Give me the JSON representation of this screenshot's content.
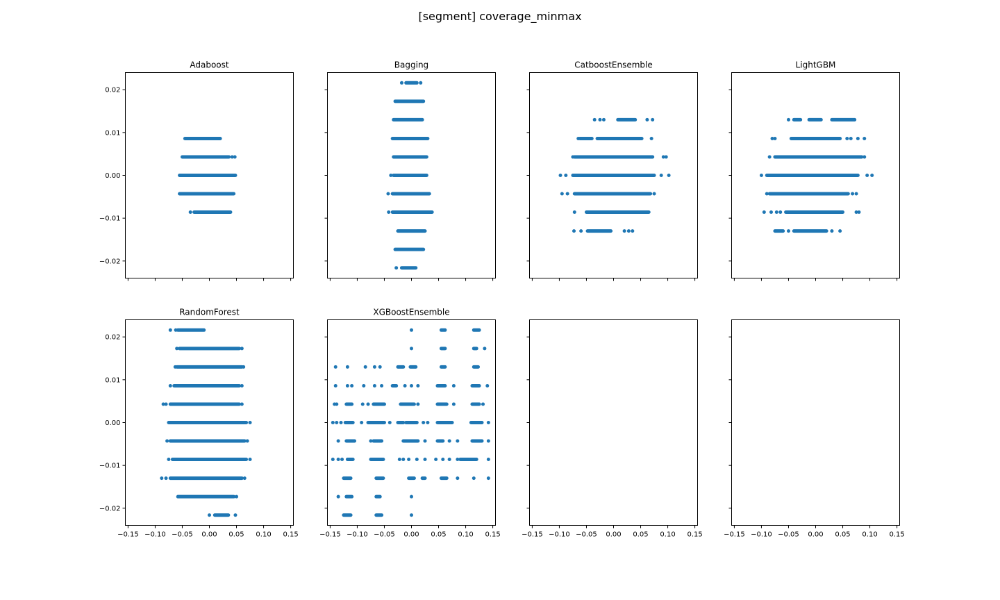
{
  "figure": {
    "suptitle": "[segment] coverage_minmax",
    "marker_color": "#1f77b4"
  },
  "chart_data": [
    {
      "type": "scatter",
      "title": "Adaboost",
      "xlim": [
        -0.155,
        0.155
      ],
      "ylim": [
        -0.024,
        0.024
      ],
      "x_ticks": [
        -0.15,
        -0.1,
        -0.05,
        0.0,
        0.05,
        0.1,
        0.15
      ],
      "x_tick_labels": [],
      "y_ticks": [
        0.02,
        0.01,
        0.0,
        -0.01,
        -0.02
      ],
      "y_tick_labels": [
        "0.02",
        "0.01",
        "0.00",
        "−0.01",
        "−0.02"
      ],
      "rows": [
        {
          "y": 0.0086,
          "ranges": [
            [
              -0.045,
              0.02
            ]
          ],
          "points": []
        },
        {
          "y": 0.0043,
          "ranges": [
            [
              -0.05,
              0.036
            ]
          ],
          "points": [
            0.042,
            0.047
          ]
        },
        {
          "y": 0.0,
          "ranges": [
            [
              -0.055,
              0.048
            ]
          ],
          "points": []
        },
        {
          "y": -0.0043,
          "ranges": [
            [
              -0.055,
              0.045
            ]
          ],
          "points": []
        },
        {
          "y": -0.0086,
          "ranges": [
            [
              -0.028,
              0.039
            ]
          ],
          "points": [
            -0.035
          ]
        }
      ]
    },
    {
      "type": "scatter",
      "title": "Bagging",
      "xlim": [
        -0.155,
        0.155
      ],
      "ylim": [
        -0.024,
        0.024
      ],
      "x_ticks": [
        -0.15,
        -0.1,
        -0.05,
        0.0,
        0.05,
        0.1,
        0.15
      ],
      "x_tick_labels": [],
      "y_ticks": [
        0.02,
        0.01,
        0.0,
        -0.01,
        -0.02
      ],
      "y_tick_labels": [],
      "rows": [
        {
          "y": 0.0216,
          "ranges": [
            [
              -0.01,
              0.01
            ]
          ],
          "points": [
            -0.018,
            0.017
          ]
        },
        {
          "y": 0.0173,
          "ranges": [
            [
              -0.03,
              0.022
            ]
          ],
          "points": []
        },
        {
          "y": 0.013,
          "ranges": [
            [
              -0.033,
              0.02
            ]
          ],
          "points": []
        },
        {
          "y": 0.0086,
          "ranges": [
            [
              -0.035,
              0.03
            ]
          ],
          "points": []
        },
        {
          "y": 0.0043,
          "ranges": [
            [
              -0.033,
              0.028
            ]
          ],
          "points": []
        },
        {
          "y": 0.0,
          "ranges": [
            [
              -0.033,
              0.028
            ]
          ],
          "points": [
            -0.038
          ]
        },
        {
          "y": -0.0043,
          "ranges": [
            [
              -0.035,
              0.033
            ]
          ],
          "points": [
            -0.043
          ]
        },
        {
          "y": -0.0086,
          "ranges": [
            [
              -0.035,
              0.038
            ]
          ],
          "points": [
            -0.042
          ]
        },
        {
          "y": -0.013,
          "ranges": [
            [
              -0.025,
              0.025
            ]
          ],
          "points": []
        },
        {
          "y": -0.0173,
          "ranges": [
            [
              -0.03,
              0.022
            ]
          ],
          "points": []
        },
        {
          "y": -0.0216,
          "ranges": [
            [
              -0.018,
              0.008
            ]
          ],
          "points": [
            -0.028
          ]
        }
      ]
    },
    {
      "type": "scatter",
      "title": "CatboostEnsemble",
      "xlim": [
        -0.155,
        0.155
      ],
      "ylim": [
        -0.024,
        0.024
      ],
      "x_ticks": [
        -0.15,
        -0.1,
        -0.05,
        0.0,
        0.05,
        0.1,
        0.15
      ],
      "x_tick_labels": [],
      "y_ticks": [
        0.02,
        0.01,
        0.0,
        -0.01,
        -0.02
      ],
      "y_tick_labels": [],
      "rows": [
        {
          "y": 0.013,
          "ranges": [
            [
              0.008,
              0.04
            ]
          ],
          "points": [
            -0.035,
            -0.025,
            -0.018,
            0.062,
            0.072
          ]
        },
        {
          "y": 0.0086,
          "ranges": [
            [
              -0.062,
              -0.04
            ],
            [
              -0.03,
              0.052
            ]
          ],
          "points": [
            -0.065,
            0.07
          ]
        },
        {
          "y": 0.0043,
          "ranges": [
            [
              -0.072,
              0.072
            ]
          ],
          "points": [
            -0.075,
            0.092,
            0.097
          ]
        },
        {
          "y": 0.0,
          "ranges": [
            [
              -0.075,
              0.075
            ]
          ],
          "points": [
            -0.098,
            -0.088,
            0.088,
            0.102
          ]
        },
        {
          "y": -0.0043,
          "ranges": [
            [
              -0.072,
              0.068
            ]
          ],
          "points": [
            -0.095,
            -0.085,
            0.075
          ]
        },
        {
          "y": -0.0086,
          "ranges": [
            [
              -0.05,
              0.065
            ]
          ],
          "points": [
            -0.072
          ]
        },
        {
          "y": -0.013,
          "ranges": [
            [
              -0.048,
              -0.005
            ]
          ],
          "points": [
            -0.073,
            -0.06,
            0.02,
            0.028,
            0.035
          ]
        }
      ]
    },
    {
      "type": "scatter",
      "title": "LightGBM",
      "xlim": [
        -0.155,
        0.155
      ],
      "ylim": [
        -0.024,
        0.024
      ],
      "x_ticks": [
        -0.15,
        -0.1,
        -0.05,
        0.0,
        0.05,
        0.1,
        0.15
      ],
      "x_tick_labels": [],
      "y_ticks": [
        0.02,
        0.01,
        0.0,
        -0.01,
        -0.02
      ],
      "y_tick_labels": [],
      "rows": [
        {
          "y": 0.013,
          "ranges": [
            [
              -0.04,
              -0.028
            ],
            [
              -0.012,
              0.01
            ],
            [
              0.03,
              0.072
            ]
          ],
          "points": [
            -0.05
          ]
        },
        {
          "y": 0.0086,
          "ranges": [
            [
              -0.045,
              0.045
            ]
          ],
          "points": [
            -0.08,
            -0.075,
            0.058,
            0.065,
            0.078,
            0.09
          ]
        },
        {
          "y": 0.0043,
          "ranges": [
            [
              -0.075,
              0.085
            ]
          ],
          "points": [
            -0.085,
            0.09
          ]
        },
        {
          "y": 0.0,
          "ranges": [
            [
              -0.09,
              0.078
            ]
          ],
          "points": [
            -0.1,
            0.095,
            0.104
          ]
        },
        {
          "y": -0.0043,
          "ranges": [
            [
              -0.085,
              0.06
            ]
          ],
          "points": [
            -0.09,
            0.068,
            0.075
          ]
        },
        {
          "y": -0.0086,
          "ranges": [
            [
              -0.055,
              0.05
            ]
          ],
          "points": [
            -0.095,
            -0.082,
            -0.072,
            -0.065,
            0.075,
            0.08
          ]
        },
        {
          "y": -0.013,
          "ranges": [
            [
              -0.075,
              -0.06
            ],
            [
              -0.04,
              0.02
            ]
          ],
          "points": [
            -0.05,
            0.03,
            0.045
          ]
        }
      ]
    },
    {
      "type": "scatter",
      "title": "RandomForest",
      "xlim": [
        -0.155,
        0.155
      ],
      "ylim": [
        -0.024,
        0.024
      ],
      "x_ticks": [
        -0.15,
        -0.1,
        -0.05,
        0.0,
        0.05,
        0.1,
        0.15
      ],
      "x_tick_labels": [
        "−0.15",
        "−0.10",
        "−0.05",
        "0.00",
        "0.05",
        "0.10",
        "0.15"
      ],
      "y_ticks": [
        0.02,
        0.01,
        0.0,
        -0.01,
        -0.02
      ],
      "y_tick_labels": [
        "0.02",
        "0.01",
        "0.00",
        "−0.01",
        "−0.02"
      ],
      "rows": [
        {
          "y": 0.0216,
          "ranges": [
            [
              -0.058,
              -0.01
            ]
          ],
          "points": [
            -0.072,
            -0.062
          ]
        },
        {
          "y": 0.0173,
          "ranges": [
            [
              -0.055,
              0.055
            ]
          ],
          "points": [
            -0.06,
            0.06
          ]
        },
        {
          "y": 0.013,
          "ranges": [
            [
              -0.06,
              0.06
            ]
          ],
          "points": [
            -0.063,
            0.063
          ]
        },
        {
          "y": 0.0086,
          "ranges": [
            [
              -0.065,
              0.055
            ]
          ],
          "points": [
            -0.072,
            0.06
          ]
        },
        {
          "y": 0.0043,
          "ranges": [
            [
              -0.072,
              0.055
            ]
          ],
          "points": [
            -0.085,
            -0.08,
            0.06
          ]
        },
        {
          "y": 0.0,
          "ranges": [
            [
              -0.075,
              0.068
            ]
          ],
          "points": [
            0.075
          ]
        },
        {
          "y": -0.0043,
          "ranges": [
            [
              -0.072,
              0.065
            ]
          ],
          "points": [
            -0.078,
            0.07
          ]
        },
        {
          "y": -0.0086,
          "ranges": [
            [
              -0.068,
              0.068
            ]
          ],
          "points": [
            -0.075,
            0.075
          ]
        },
        {
          "y": -0.013,
          "ranges": [
            [
              -0.072,
              0.06
            ]
          ],
          "points": [
            -0.088,
            -0.08,
            0.065
          ]
        },
        {
          "y": -0.0173,
          "ranges": [
            [
              -0.058,
              0.045
            ]
          ],
          "points": [
            0.05
          ]
        },
        {
          "y": -0.0216,
          "ranges": [
            [
              0.01,
              0.035
            ]
          ],
          "points": [
            0.0,
            0.048
          ]
        }
      ]
    },
    {
      "type": "scatter",
      "title": "XGBoostEnsemble",
      "xlim": [
        -0.155,
        0.155
      ],
      "ylim": [
        -0.024,
        0.024
      ],
      "x_ticks": [
        -0.15,
        -0.1,
        -0.05,
        0.0,
        0.05,
        0.1,
        0.15
      ],
      "x_tick_labels": [
        "−0.15",
        "−0.10",
        "−0.05",
        "0.00",
        "0.05",
        "0.10",
        "0.15"
      ],
      "y_ticks": [
        0.02,
        0.01,
        0.0,
        -0.01,
        -0.02
      ],
      "y_tick_labels": [],
      "rows": [
        {
          "y": 0.0216,
          "ranges": [
            [
              0.055,
              0.062
            ],
            [
              0.115,
              0.125
            ]
          ],
          "points": [
            0.0
          ]
        },
        {
          "y": 0.0173,
          "ranges": [
            [
              0.055,
              0.062
            ],
            [
              0.115,
              0.12
            ]
          ],
          "points": [
            0.0,
            0.135
          ]
        },
        {
          "y": 0.013,
          "ranges": [
            [
              -0.025,
              -0.015
            ],
            [
              -0.002,
              0.008
            ],
            [
              0.055,
              0.062
            ],
            [
              0.115,
              0.123
            ]
          ],
          "points": [
            -0.14,
            -0.118,
            -0.085,
            -0.068,
            -0.058
          ]
        },
        {
          "y": 0.0086,
          "ranges": [
            [
              -0.035,
              -0.028
            ],
            [
              0.048,
              0.062
            ],
            [
              0.112,
              0.125
            ]
          ],
          "points": [
            -0.14,
            -0.118,
            -0.11,
            -0.088,
            -0.068,
            -0.055,
            -0.012,
            0.0,
            0.012,
            0.078,
            0.14
          ]
        },
        {
          "y": 0.0043,
          "ranges": [
            [
              -0.12,
              -0.11
            ],
            [
              -0.07,
              -0.05
            ],
            [
              -0.02,
              0.005
            ],
            [
              0.048,
              0.065
            ],
            [
              0.112,
              0.125
            ]
          ],
          "points": [
            -0.142,
            -0.138,
            -0.09,
            -0.08,
            0.012,
            0.078,
            0.132
          ]
        },
        {
          "y": 0.0,
          "ranges": [
            [
              -0.122,
              -0.108
            ],
            [
              -0.08,
              -0.05
            ],
            [
              -0.025,
              -0.015
            ],
            [
              -0.01,
              0.01
            ],
            [
              0.048,
              0.075
            ],
            [
              0.11,
              0.13
            ]
          ],
          "points": [
            -0.145,
            -0.138,
            -0.13,
            -0.092,
            -0.04,
            0.022,
            0.03,
            0.142
          ]
        },
        {
          "y": -0.0043,
          "ranges": [
            [
              -0.12,
              -0.105
            ],
            [
              -0.07,
              -0.055
            ],
            [
              -0.015,
              0.012
            ],
            [
              0.048,
              0.058
            ],
            [
              0.112,
              0.13
            ]
          ],
          "points": [
            -0.135,
            -0.075,
            0.025,
            0.07,
            0.085,
            0.142
          ]
        },
        {
          "y": -0.0086,
          "ranges": [
            [
              -0.118,
              -0.108
            ],
            [
              -0.075,
              -0.052
            ],
            [
              0.09,
              0.12
            ]
          ],
          "points": [
            -0.145,
            -0.135,
            -0.128,
            -0.022,
            -0.015,
            -0.005,
            0.01,
            0.025,
            0.045,
            0.058,
            0.07,
            0.085,
            0.142
          ]
        },
        {
          "y": -0.013,
          "ranges": [
            [
              -0.125,
              -0.112
            ],
            [
              -0.065,
              -0.052
            ],
            [
              -0.005,
              0.005
            ],
            [
              0.02,
              0.025
            ],
            [
              0.055,
              0.065
            ]
          ],
          "points": [
            0.085,
            0.115,
            0.142
          ]
        },
        {
          "y": -0.0173,
          "ranges": [
            [
              -0.065,
              -0.058
            ],
            [
              -0.12,
              -0.11
            ]
          ],
          "points": [
            -0.135,
            0.0
          ]
        },
        {
          "y": -0.0216,
          "ranges": [
            [
              -0.125,
              -0.112
            ],
            [
              -0.065,
              -0.055
            ]
          ],
          "points": [
            0.0
          ]
        }
      ]
    },
    {
      "type": "scatter",
      "title": "",
      "xlim": [
        -0.155,
        0.155
      ],
      "ylim": [
        -0.024,
        0.024
      ],
      "x_ticks": [
        -0.15,
        -0.1,
        -0.05,
        0.0,
        0.05,
        0.1,
        0.15
      ],
      "x_tick_labels": [
        "−0.15",
        "−0.10",
        "−0.05",
        "0.00",
        "0.05",
        "0.10",
        "0.15"
      ],
      "y_ticks": [
        0.02,
        0.01,
        0.0,
        -0.01,
        -0.02
      ],
      "y_tick_labels": [],
      "rows": []
    },
    {
      "type": "scatter",
      "title": "",
      "xlim": [
        -0.155,
        0.155
      ],
      "ylim": [
        -0.024,
        0.024
      ],
      "x_ticks": [
        -0.15,
        -0.1,
        -0.05,
        0.0,
        0.05,
        0.1,
        0.15
      ],
      "x_tick_labels": [
        "−0.15",
        "−0.10",
        "−0.05",
        "0.00",
        "0.05",
        "0.10",
        "0.15"
      ],
      "y_ticks": [
        0.02,
        0.01,
        0.0,
        -0.01,
        -0.02
      ],
      "y_tick_labels": [],
      "rows": []
    }
  ]
}
